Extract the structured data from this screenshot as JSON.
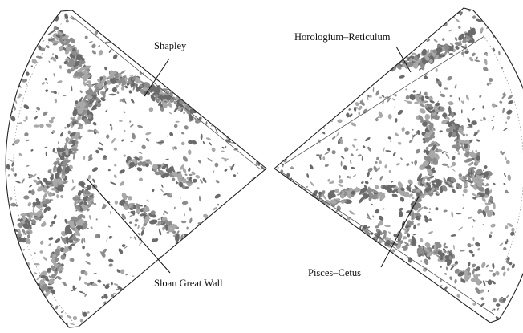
{
  "labels": {
    "shapley": "Shapley",
    "sloan_great_wall": "Sloan Great Wall",
    "horologium_reticulum": "Horologium–Reticulum",
    "pisces_cetus": "Pisces–Cetus"
  },
  "colors": {
    "background": "#ffffff",
    "structure_light": "#a8a8a8",
    "structure_mid": "#8c8c8c",
    "structure_dark": "#6a6a6a",
    "outline": "#222222"
  }
}
